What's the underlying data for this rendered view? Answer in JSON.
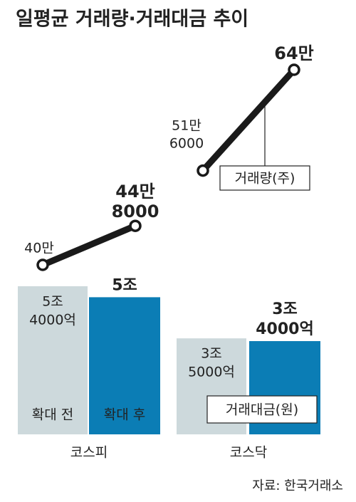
{
  "title": "일평균 거래량·거래대금 추이",
  "source": "자료: 한국거래소",
  "chart_data": [
    {
      "type": "bar",
      "label": "거래대금(원)",
      "categories": [
        "코스피",
        "코스닥"
      ],
      "ylim": [
        0,
        54000
      ],
      "series": [
        {
          "name": "확대 전",
          "color": "#cdd9dc",
          "values": [
            54000,
            35000
          ],
          "value_labels": [
            [
              "5조",
              "4000억"
            ],
            [
              "3조",
              "5000억"
            ]
          ]
        },
        {
          "name": "확대 후",
          "color": "#0b7db5",
          "values": [
            50000,
            34000
          ],
          "value_labels": [
            [
              "5조"
            ],
            [
              "3조",
              "4000억"
            ]
          ]
        }
      ]
    },
    {
      "type": "line",
      "label": "거래량(주)",
      "color": "#1a1a1a",
      "ylim": [
        400000,
        640000
      ],
      "series": [
        {
          "values": [
            400000,
            448000
          ],
          "value_labels": [
            [
              "40만"
            ],
            [
              "44만",
              "8000"
            ]
          ]
        },
        {
          "values": [
            516000,
            640000
          ],
          "value_labels": [
            [
              "51만",
              "6000"
            ],
            [
              "64만"
            ]
          ]
        }
      ]
    }
  ]
}
